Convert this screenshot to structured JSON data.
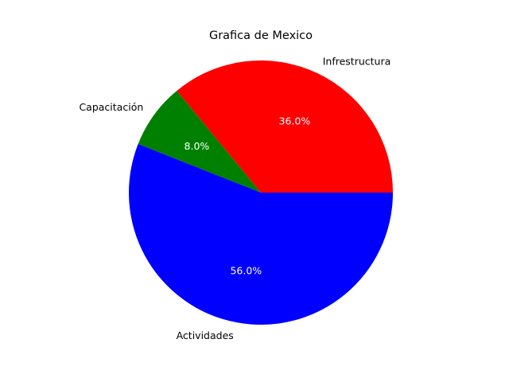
{
  "chart_data": {
    "type": "pie",
    "title": "Grafica de Mexico",
    "categories": [
      "Infrestructura",
      "Capacitación",
      "Actividades"
    ],
    "values": [
      36.0,
      8.0,
      56.0
    ],
    "percent_labels": [
      "36.0%",
      "8.0%",
      "56.0%"
    ],
    "colors": [
      "#ff0000",
      "#008000",
      "#0000ff"
    ],
    "start_angle_deg": 0,
    "direction": "counterclockwise",
    "legend": "none"
  }
}
